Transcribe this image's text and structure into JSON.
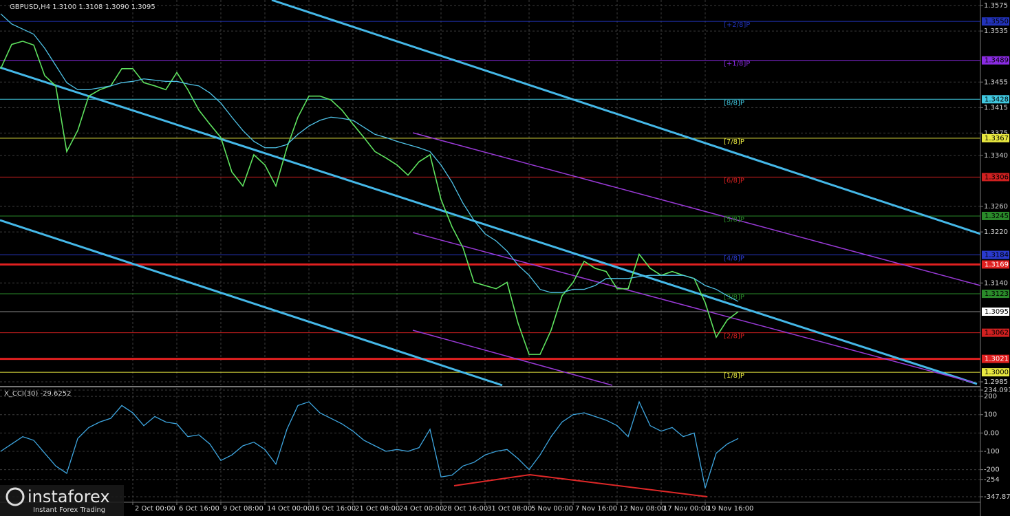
{
  "chart_data": [
    {
      "type": "line",
      "title": "GBPUSD,H4  1.3100 1.3108 1.3090 1.3095",
      "categories": [
        null,
        null,
        null,
        null,
        null,
        null,
        null,
        null,
        null,
        null,
        null,
        null,
        "2 Oct 00:00",
        null,
        null,
        null,
        "6 Oct 16:00",
        null,
        null,
        null,
        "9 Oct 08:00",
        null,
        null,
        null,
        "14 Oct 00:00",
        null,
        null,
        null,
        "16 Oct 16:00",
        null,
        null,
        null,
        "21 Oct 08:00",
        null,
        null,
        null,
        "24 Oct 00:00",
        null,
        null,
        null,
        "28 Oct 16:00",
        null,
        null,
        null,
        "31 Oct 08:00",
        null,
        null,
        null,
        "5 Nov 00:00",
        null,
        null,
        null,
        "7 Nov 16:00",
        null,
        null,
        null,
        "12 Nov 08:00",
        null,
        null,
        null,
        "17 Nov 00:00",
        null,
        null,
        null,
        "19 Nov 16:00",
        null,
        null,
        null
      ],
      "series": [
        {
          "color": "#5fe35f",
          "values": [
            1.3476,
            1.3514,
            1.3519,
            1.3513,
            1.3465,
            1.3449,
            1.3346,
            1.3379,
            1.3433,
            1.3443,
            1.3449,
            1.3476,
            1.3476,
            1.3454,
            1.3449,
            1.3443,
            1.347,
            1.3443,
            1.3411,
            1.3389,
            1.3368,
            1.3314,
            1.3292,
            1.3341,
            1.3325,
            1.3292,
            1.3352,
            1.34,
            1.3433,
            1.3433,
            1.3427,
            1.3411,
            1.3389,
            1.3368,
            1.3346,
            1.3336,
            1.3325,
            1.3309,
            1.333,
            1.3341,
            1.3271,
            1.3228,
            1.3195,
            1.3141,
            1.3136,
            1.3131,
            1.3141,
            1.3077,
            1.3028,
            1.3028,
            1.3066,
            1.312,
            1.3141,
            1.3174,
            1.3163,
            1.3158,
            1.3131,
            1.3131,
            1.3185,
            1.3163,
            1.3152,
            1.3158,
            1.3152,
            1.3147,
            1.3109,
            1.3055,
            1.3082,
            1.3095
          ]
        },
        {
          "color": "#4fc3e8",
          "values": [
            1.3562,
            1.3546,
            1.3538,
            1.353,
            1.3508,
            1.3481,
            1.3454,
            1.3443,
            1.3443,
            1.3446,
            1.3449,
            1.3454,
            1.3456,
            1.346,
            1.3458,
            1.3456,
            1.3456,
            1.3452,
            1.3449,
            1.3438,
            1.3422,
            1.34,
            1.3379,
            1.3362,
            1.3352,
            1.3352,
            1.3357,
            1.3373,
            1.3386,
            1.3395,
            1.34,
            1.3398,
            1.3395,
            1.3384,
            1.3373,
            1.3368,
            1.3362,
            1.3357,
            1.3352,
            1.3346,
            1.3325,
            1.3298,
            1.3265,
            1.3238,
            1.3217,
            1.3206,
            1.319,
            1.3168,
            1.3152,
            1.313,
            1.3125,
            1.3125,
            1.313,
            1.313,
            1.3136,
            1.3147,
            1.3147,
            1.3147,
            1.315,
            1.3152,
            1.3152,
            1.3152,
            1.3152,
            1.3147,
            1.3136,
            1.313,
            1.312,
            1.3111
          ]
        }
      ],
      "ylim": [
        1.2985,
        1.3575
      ],
      "yticks": [
        1.3575,
        1.3535,
        1.3455,
        1.3415,
        1.3375,
        {
          "value": 1.334,
          "label": "1.3340"
        },
        {
          "value": 1.326,
          "label": "1.3260"
        },
        {
          "value": 1.322,
          "label": "1.3220"
        },
        {
          "value": 1.314,
          "label": "1.3140"
        },
        1.2985
      ],
      "grid": true,
      "murray_levels": [
        {
          "value": 1.355,
          "label": "1.3550",
          "tag": "[+2/8]P",
          "color": "#2233bb"
        },
        {
          "value": 1.3489,
          "label": "1.3489",
          "tag": "[+1/8]P",
          "color": "#8a2be2"
        },
        {
          "value": 1.3428,
          "label": "1.3428",
          "tag": "[8/8]P",
          "color": "#40c8e0"
        },
        {
          "value": 1.3367,
          "label": "1.3367",
          "tag": "[7/8]P",
          "color": "#e8e840"
        },
        {
          "value": 1.3306,
          "label": "1.3306",
          "tag": "[6/8]P",
          "color": "#d02020"
        },
        {
          "value": 1.3245,
          "label": "1.3245",
          "tag": "[5/8]P",
          "color": "#2a8a2a"
        },
        {
          "value": 1.3184,
          "label": "1.3184",
          "tag": "[4/8]P",
          "color": "#2a3acc"
        },
        {
          "value": 1.3123,
          "label": "1.3123",
          "tag": "[3/8]P",
          "color": "#2a8a2a"
        },
        {
          "value": 1.3062,
          "label": "1.3062",
          "tag": "[2/8]P",
          "color": "#d02020"
        },
        {
          "value": 1.3,
          "label": "1.3000",
          "tag": "[1/8]P",
          "color": "#e8e840"
        }
      ],
      "price_lines": [
        {
          "value": 1.3169,
          "label": "1.3169",
          "color": "#e02020",
          "style": "thick"
        },
        {
          "value": 1.3021,
          "label": "1.3021",
          "color": "#e02020",
          "style": "thick"
        },
        {
          "value": 1.3095,
          "label": "1.3095",
          "color": "#ffffff",
          "style": "thin"
        }
      ]
    },
    {
      "type": "line",
      "title": "X_CCI(30) -29.6252",
      "series": [
        {
          "color": "#3ea6e0",
          "values": [
            -100,
            -60,
            -20,
            -40,
            -110,
            -180,
            -220,
            -30,
            30,
            60,
            80,
            150,
            110,
            40,
            90,
            60,
            50,
            -20,
            -10,
            -60,
            -150,
            -120,
            -70,
            -50,
            -90,
            -170,
            20,
            150,
            170,
            110,
            80,
            50,
            10,
            -40,
            -70,
            -100,
            -90,
            -100,
            -80,
            20,
            -240,
            -230,
            -180,
            -160,
            -120,
            -100,
            -90,
            -140,
            -200,
            -120,
            -20,
            60,
            100,
            110,
            90,
            70,
            40,
            -20,
            170,
            40,
            10,
            30,
            -20,
            0,
            -300,
            -110,
            -60,
            -30
          ]
        }
      ],
      "ylim": [
        -347.8744,
        234.0912
      ],
      "yticks": [
        234.0912,
        200,
        100,
        {
          "value": 0,
          "label": "0.00"
        },
        -100,
        -200,
        -254,
        -347.8744
      ],
      "grid": true
    }
  ],
  "watermark": {
    "brand": "instaforex",
    "tagline": "Instant Forex Trading"
  }
}
